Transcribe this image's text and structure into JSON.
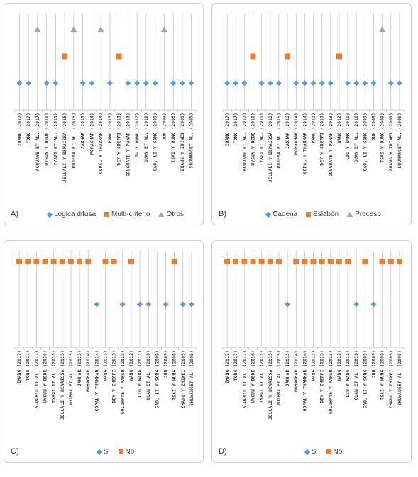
{
  "colors": {
    "diamond": "#5b9bd5",
    "square": "#ed7d31",
    "triangle": "#a5a5a5",
    "stem": "#c8c8c8"
  },
  "chart_data": [
    {
      "type": "scatter",
      "panel": "A)",
      "categories": [
        "ZHANG (2017)",
        "TONG (2017)",
        "ACQUAYE ET AL. (2017)",
        "UYGUN Y DEDE (2016)",
        "TYAGI ET AL. (2015)",
        "JELLALI Y BENAISSA (2015)",
        "RUJEMA ET AL. (2015)",
        "JAKHAR (2015)",
        "MOHAGHAR (2014)",
        "GOPAL Y THAKKAR (2014)",
        "PANG (2013)",
        "DEY Y CHEFFI (2013)",
        "GOLGHATE Y PAWAR (2013)",
        "LIU Y WANG (2012)",
        "GUAN ET AL. (2010)",
        "GAO, LI Y SONG (2009)",
        "JUN (2009)",
        "TSAI Y HUNG (2009)",
        "ZHANG Y ZHIWEI (2009)",
        "SHUWANGET AL. (2005)"
      ],
      "levels": [
        "Lógica difusa",
        "Multi-criterio",
        "Otros"
      ],
      "series": [
        {
          "name": "Lógica difusa",
          "symbol": "diamond",
          "level": 1,
          "points": [
            0,
            1,
            3,
            4,
            7,
            8,
            10,
            12,
            13,
            14,
            15,
            17,
            18,
            19
          ]
        },
        {
          "name": "Multi-criterio",
          "symbol": "square",
          "level": 2,
          "points": [
            5,
            11
          ]
        },
        {
          "name": "Otros",
          "symbol": "triangle",
          "level": 3,
          "points": [
            2,
            6,
            9,
            16
          ]
        }
      ],
      "ylim": [
        0,
        3.6
      ]
    },
    {
      "type": "scatter",
      "panel": "B)",
      "categories": [
        "ZHANG (2017)",
        "TONG (2017)",
        "ACQUAYE ET AL. (2017)",
        "UYGUN Y DEDE (2016)",
        "TYAGI ET AL. (2015)",
        "JELLALI Y BENAISSA (2015)",
        "RUJEMA ET AL. (2015)",
        "JAKHAR (2015)",
        "MOHAGHAR (2014)",
        "GOPAL Y THAKKAR (2014)",
        "PANG (2013)",
        "DEY Y CHEFFI (2013)",
        "GOLGHATE Y PAWAR (2013)",
        "WANG (2012)",
        "LIU Y WANG (2011)",
        "GUAN ET AL. (2010)",
        "GAO, LI Y SONG (2009)",
        "JUN (2009)",
        "TSAI Y HUNG (2009)",
        "ZHANG Y ZHIWEI (2009)",
        "SHUWANGET AL. (2005)"
      ],
      "levels": [
        "Cadena",
        "Eslabón",
        "Proceso"
      ],
      "series": [
        {
          "name": "Cadena",
          "symbol": "diamond",
          "level": 1,
          "points": [
            0,
            1,
            2,
            4,
            5,
            6,
            8,
            9,
            10,
            11,
            12,
            14,
            15,
            16,
            17,
            19,
            20
          ]
        },
        {
          "name": "Eslabón",
          "symbol": "square",
          "level": 2,
          "points": [
            3,
            7,
            13
          ]
        },
        {
          "name": "Proceso",
          "symbol": "triangle",
          "level": 3,
          "points": [
            18
          ]
        }
      ],
      "ylim": [
        0,
        3.6
      ]
    },
    {
      "type": "scatter",
      "panel": "C)",
      "categories": [
        "ZHANG (2017)",
        "TONG (2017)",
        "ACQUAYE ET AL. (2017)",
        "UYGUN Y DEDE (2016)",
        "TYAGI ET AL. (2015)",
        "JELLALI Y BENAISSA (2015)",
        "RUJEMA ET AL. (2015)",
        "JAKHAR (2015)",
        "MOHAGHAR (2014)",
        "GOPAL Y THAKKAR (2014)",
        "PANG (2013)",
        "DEY Y CHEFFI (2013)",
        "GOLGHATE Y PAWAR (2013)",
        "WANG (2012)",
        "LIU Y WANG (2011)",
        "GUAN ET AL. (2010)",
        "GAO, LI Y SONG (2009)",
        "JUN (2009)",
        "TSAI Y HUNG (2009)",
        "ZHANG Y ZHIWEI (2009)",
        "SHUWANGET AL. (2005)"
      ],
      "levels": [
        "Si",
        "No"
      ],
      "series": [
        {
          "name": "Si",
          "symbol": "diamond",
          "level": 1,
          "points": [
            9,
            12,
            14,
            15,
            17,
            19,
            20
          ]
        },
        {
          "name": "No",
          "symbol": "square",
          "level": 2,
          "points": [
            0,
            1,
            2,
            3,
            4,
            5,
            6,
            7,
            8,
            10,
            11,
            13,
            18
          ]
        }
      ],
      "ylim": [
        0,
        2.25
      ]
    },
    {
      "type": "scatter",
      "panel": "D)",
      "categories": [
        "ZHANG (2017)",
        "TONG (2017)",
        "ACQUAYE ET AL. (2017)",
        "UYGUN Y DEDE (2016)",
        "TYAGI ET AL. (2015)",
        "JELLALI Y BENAISSA (2015)",
        "RUJEMA ET AL. (2015)",
        "JAKHAR (2015)",
        "MOHAGHAR (2014)",
        "GOPAL Y THAKKAR (2014)",
        "PANG (2013)",
        "DEY Y CHEFFI (2013)",
        "GOLGHATE Y PAWAR (2013)",
        "WANG (2012)",
        "LIU Y WANG (2011)",
        "GUAN ET AL. (2010)",
        "GAO, LI Y SONG (2009)",
        "JUN (2009)",
        "TSAI Y HUNG (2009)",
        "ZHANG Y ZHIWEI (2009)",
        "SHUWANGET AL. (2005)"
      ],
      "levels": [
        "Si",
        "No"
      ],
      "series": [
        {
          "name": "Si",
          "symbol": "diamond",
          "level": 1,
          "points": [
            7,
            15,
            17
          ]
        },
        {
          "name": "No",
          "symbol": "square",
          "level": 2,
          "points": [
            0,
            1,
            2,
            3,
            4,
            5,
            6,
            8,
            9,
            10,
            11,
            12,
            13,
            14,
            16,
            18,
            19,
            20
          ]
        }
      ],
      "ylim": [
        0,
        2.25
      ]
    }
  ]
}
